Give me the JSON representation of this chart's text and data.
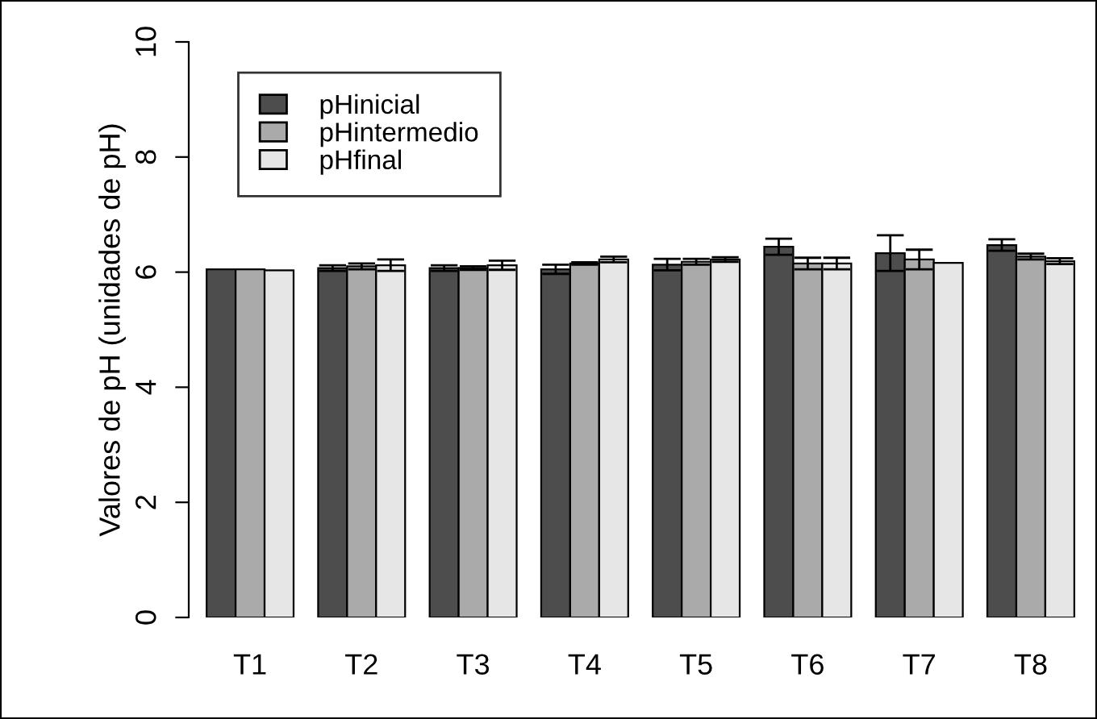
{
  "chart_data": {
    "type": "bar",
    "ylabel": "Valores de pH (unidades de pH)",
    "categories": [
      "T1",
      "T2",
      "T3",
      "T4",
      "T5",
      "T6",
      "T7",
      "T8"
    ],
    "series": [
      {
        "name": "pHinicial",
        "color": "#4d4d4d",
        "values": [
          6.05,
          6.07,
          6.07,
          6.05,
          6.13,
          6.44,
          6.33,
          6.47
        ],
        "errors": [
          null,
          0.05,
          0.05,
          0.08,
          0.1,
          0.14,
          0.31,
          0.1
        ]
      },
      {
        "name": "pHintermedio",
        "color": "#aaaaaa",
        "values": [
          6.05,
          6.1,
          6.07,
          6.15,
          6.18,
          6.15,
          6.22,
          6.27
        ],
        "errors": [
          null,
          0.05,
          0.03,
          0.02,
          0.05,
          0.1,
          0.17,
          0.05
        ]
      },
      {
        "name": "pHfinal",
        "color": "#e6e6e6",
        "values": [
          6.03,
          6.12,
          6.12,
          6.22,
          6.22,
          6.15,
          6.16,
          6.19
        ],
        "errors": [
          null,
          0.1,
          0.08,
          0.05,
          0.04,
          0.1,
          null,
          0.05
        ]
      }
    ],
    "ylim": [
      0,
      10
    ],
    "yticks": [
      0,
      2,
      4,
      6,
      8,
      10
    ],
    "grid": false,
    "legend": "top left"
  }
}
